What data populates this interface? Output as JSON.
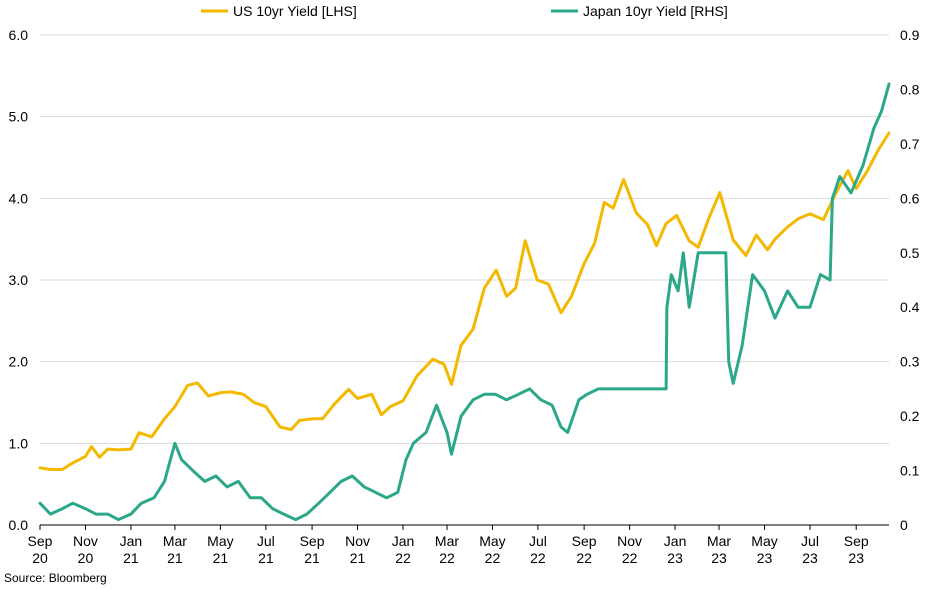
{
  "chart_data": {
    "type": "line",
    "legend": {
      "placement": "top-center"
    },
    "grid": {
      "horizontal": true,
      "vertical": false
    },
    "x_range": [
      "2020-09-01",
      "2023-10-15"
    ],
    "x_ticks": [
      {
        "date": "2020-09-01",
        "label": [
          "Sep",
          "20"
        ]
      },
      {
        "date": "2020-11-01",
        "label": [
          "Nov",
          "20"
        ]
      },
      {
        "date": "2021-01-01",
        "label": [
          "Jan",
          "21"
        ]
      },
      {
        "date": "2021-03-01",
        "label": [
          "Mar",
          "21"
        ]
      },
      {
        "date": "2021-05-01",
        "label": [
          "May",
          "21"
        ]
      },
      {
        "date": "2021-07-01",
        "label": [
          "Jul",
          "21"
        ]
      },
      {
        "date": "2021-09-01",
        "label": [
          "Sep",
          "21"
        ]
      },
      {
        "date": "2021-11-01",
        "label": [
          "Nov",
          "21"
        ]
      },
      {
        "date": "2022-01-01",
        "label": [
          "Jan",
          "22"
        ]
      },
      {
        "date": "2022-03-01",
        "label": [
          "Mar",
          "22"
        ]
      },
      {
        "date": "2022-05-01",
        "label": [
          "May",
          "22"
        ]
      },
      {
        "date": "2022-07-01",
        "label": [
          "Jul",
          "22"
        ]
      },
      {
        "date": "2022-09-01",
        "label": [
          "Sep",
          "22"
        ]
      },
      {
        "date": "2022-11-01",
        "label": [
          "Nov",
          "22"
        ]
      },
      {
        "date": "2023-01-01",
        "label": [
          "Jan",
          "23"
        ]
      },
      {
        "date": "2023-03-01",
        "label": [
          "Mar",
          "23"
        ]
      },
      {
        "date": "2023-05-01",
        "label": [
          "May",
          "23"
        ]
      },
      {
        "date": "2023-07-01",
        "label": [
          "Jul",
          "23"
        ]
      },
      {
        "date": "2023-09-01",
        "label": [
          "Sep",
          "23"
        ]
      }
    ],
    "y_left": {
      "range": [
        0,
        6
      ],
      "ticks": [
        "0.0",
        "1.0",
        "2.0",
        "3.0",
        "4.0",
        "5.0",
        "6.0"
      ]
    },
    "y_right": {
      "range": [
        0,
        0.9
      ],
      "ticks": [
        "0",
        "0.1",
        "0.2",
        "0.3",
        "0.4",
        "0.5",
        "0.6",
        "0.7",
        "0.8",
        "0.9"
      ]
    },
    "series": [
      {
        "name": "US 10yr Yield [LHS]",
        "axis": "left",
        "color": "#F5B800",
        "points": [
          [
            "2020-09-01",
            0.7
          ],
          [
            "2020-09-15",
            0.68
          ],
          [
            "2020-10-01",
            0.68
          ],
          [
            "2020-10-15",
            0.76
          ],
          [
            "2020-11-01",
            0.84
          ],
          [
            "2020-11-09",
            0.96
          ],
          [
            "2020-11-20",
            0.83
          ],
          [
            "2020-12-01",
            0.93
          ],
          [
            "2020-12-15",
            0.92
          ],
          [
            "2021-01-01",
            0.93
          ],
          [
            "2021-01-12",
            1.13
          ],
          [
            "2021-01-29",
            1.08
          ],
          [
            "2021-02-15",
            1.3
          ],
          [
            "2021-03-01",
            1.45
          ],
          [
            "2021-03-18",
            1.71
          ],
          [
            "2021-03-31",
            1.74
          ],
          [
            "2021-04-15",
            1.58
          ],
          [
            "2021-05-01",
            1.62
          ],
          [
            "2021-05-15",
            1.63
          ],
          [
            "2021-06-01",
            1.6
          ],
          [
            "2021-06-15",
            1.5
          ],
          [
            "2021-07-01",
            1.45
          ],
          [
            "2021-07-20",
            1.2
          ],
          [
            "2021-08-04",
            1.17
          ],
          [
            "2021-08-15",
            1.28
          ],
          [
            "2021-09-01",
            1.3
          ],
          [
            "2021-09-15",
            1.3
          ],
          [
            "2021-10-01",
            1.48
          ],
          [
            "2021-10-20",
            1.66
          ],
          [
            "2021-11-01",
            1.55
          ],
          [
            "2021-11-20",
            1.6
          ],
          [
            "2021-12-03",
            1.35
          ],
          [
            "2021-12-15",
            1.45
          ],
          [
            "2022-01-01",
            1.52
          ],
          [
            "2022-01-20",
            1.83
          ],
          [
            "2022-02-10",
            2.03
          ],
          [
            "2022-02-25",
            1.97
          ],
          [
            "2022-03-07",
            1.72
          ],
          [
            "2022-03-20",
            2.2
          ],
          [
            "2022-04-05",
            2.4
          ],
          [
            "2022-04-20",
            2.9
          ],
          [
            "2022-05-06",
            3.12
          ],
          [
            "2022-05-20",
            2.8
          ],
          [
            "2022-06-01",
            2.9
          ],
          [
            "2022-06-14",
            3.48
          ],
          [
            "2022-06-30",
            3.0
          ],
          [
            "2022-07-15",
            2.95
          ],
          [
            "2022-08-01",
            2.6
          ],
          [
            "2022-08-15",
            2.8
          ],
          [
            "2022-09-01",
            3.2
          ],
          [
            "2022-09-15",
            3.45
          ],
          [
            "2022-09-28",
            3.95
          ],
          [
            "2022-10-10",
            3.88
          ],
          [
            "2022-10-24",
            4.23
          ],
          [
            "2022-11-10",
            3.82
          ],
          [
            "2022-11-25",
            3.68
          ],
          [
            "2022-12-07",
            3.42
          ],
          [
            "2022-12-20",
            3.69
          ],
          [
            "2023-01-03",
            3.79
          ],
          [
            "2023-01-20",
            3.48
          ],
          [
            "2023-02-01",
            3.4
          ],
          [
            "2023-02-15",
            3.75
          ],
          [
            "2023-03-02",
            4.07
          ],
          [
            "2023-03-20",
            3.49
          ],
          [
            "2023-04-06",
            3.3
          ],
          [
            "2023-04-20",
            3.55
          ],
          [
            "2023-05-05",
            3.37
          ],
          [
            "2023-05-15",
            3.5
          ],
          [
            "2023-06-01",
            3.65
          ],
          [
            "2023-06-15",
            3.75
          ],
          [
            "2023-07-01",
            3.81
          ],
          [
            "2023-07-19",
            3.74
          ],
          [
            "2023-08-04",
            4.05
          ],
          [
            "2023-08-21",
            4.34
          ],
          [
            "2023-09-01",
            4.12
          ],
          [
            "2023-09-15",
            4.32
          ],
          [
            "2023-10-01",
            4.6
          ],
          [
            "2023-10-15",
            4.8
          ]
        ]
      },
      {
        "name": "Japan 10yr Yield [RHS]",
        "axis": "right",
        "color": "#2BA88A",
        "points": [
          [
            "2020-09-01",
            0.04
          ],
          [
            "2020-09-15",
            0.02
          ],
          [
            "2020-10-01",
            0.03
          ],
          [
            "2020-10-15",
            0.04
          ],
          [
            "2020-11-01",
            0.03
          ],
          [
            "2020-11-15",
            0.02
          ],
          [
            "2020-12-01",
            0.02
          ],
          [
            "2020-12-15",
            0.01
          ],
          [
            "2021-01-01",
            0.02
          ],
          [
            "2021-01-15",
            0.04
          ],
          [
            "2021-02-01",
            0.05
          ],
          [
            "2021-02-15",
            0.08
          ],
          [
            "2021-03-01",
            0.15
          ],
          [
            "2021-03-10",
            0.12
          ],
          [
            "2021-03-25",
            0.1
          ],
          [
            "2021-04-10",
            0.08
          ],
          [
            "2021-04-25",
            0.09
          ],
          [
            "2021-05-10",
            0.07
          ],
          [
            "2021-05-25",
            0.08
          ],
          [
            "2021-06-10",
            0.05
          ],
          [
            "2021-06-25",
            0.05
          ],
          [
            "2021-07-10",
            0.03
          ],
          [
            "2021-07-25",
            0.02
          ],
          [
            "2021-08-10",
            0.01
          ],
          [
            "2021-08-25",
            0.02
          ],
          [
            "2021-09-10",
            0.04
          ],
          [
            "2021-09-25",
            0.06
          ],
          [
            "2021-10-10",
            0.08
          ],
          [
            "2021-10-25",
            0.09
          ],
          [
            "2021-11-10",
            0.07
          ],
          [
            "2021-11-25",
            0.06
          ],
          [
            "2021-12-10",
            0.05
          ],
          [
            "2021-12-25",
            0.06
          ],
          [
            "2022-01-05",
            0.12
          ],
          [
            "2022-01-15",
            0.15
          ],
          [
            "2022-02-01",
            0.17
          ],
          [
            "2022-02-15",
            0.22
          ],
          [
            "2022-03-01",
            0.17
          ],
          [
            "2022-03-07",
            0.13
          ],
          [
            "2022-03-20",
            0.2
          ],
          [
            "2022-04-05",
            0.23
          ],
          [
            "2022-04-20",
            0.24
          ],
          [
            "2022-05-05",
            0.24
          ],
          [
            "2022-05-20",
            0.23
          ],
          [
            "2022-06-05",
            0.24
          ],
          [
            "2022-06-20",
            0.25
          ],
          [
            "2022-07-05",
            0.23
          ],
          [
            "2022-07-20",
            0.22
          ],
          [
            "2022-08-01",
            0.18
          ],
          [
            "2022-08-10",
            0.17
          ],
          [
            "2022-08-25",
            0.23
          ],
          [
            "2022-09-05",
            0.24
          ],
          [
            "2022-09-20",
            0.25
          ],
          [
            "2022-10-05",
            0.25
          ],
          [
            "2022-10-20",
            0.25
          ],
          [
            "2022-11-05",
            0.25
          ],
          [
            "2022-11-20",
            0.25
          ],
          [
            "2022-12-10",
            0.25
          ],
          [
            "2022-12-20",
            0.25
          ],
          [
            "2022-12-21",
            0.4
          ],
          [
            "2022-12-27",
            0.46
          ],
          [
            "2023-01-05",
            0.43
          ],
          [
            "2023-01-12",
            0.5
          ],
          [
            "2023-01-20",
            0.4
          ],
          [
            "2023-02-01",
            0.5
          ],
          [
            "2023-02-15",
            0.5
          ],
          [
            "2023-03-01",
            0.5
          ],
          [
            "2023-03-10",
            0.5
          ],
          [
            "2023-03-14",
            0.3
          ],
          [
            "2023-03-20",
            0.26
          ],
          [
            "2023-04-01",
            0.33
          ],
          [
            "2023-04-15",
            0.46
          ],
          [
            "2023-05-01",
            0.43
          ],
          [
            "2023-05-15",
            0.38
          ],
          [
            "2023-06-01",
            0.43
          ],
          [
            "2023-06-15",
            0.4
          ],
          [
            "2023-07-01",
            0.4
          ],
          [
            "2023-07-15",
            0.46
          ],
          [
            "2023-07-28",
            0.45
          ],
          [
            "2023-07-31",
            0.6
          ],
          [
            "2023-08-10",
            0.64
          ],
          [
            "2023-08-25",
            0.61
          ],
          [
            "2023-09-10",
            0.66
          ],
          [
            "2023-09-25",
            0.73
          ],
          [
            "2023-10-05",
            0.76
          ],
          [
            "2023-10-15",
            0.81
          ]
        ]
      }
    ],
    "source": "Source: Bloomberg"
  }
}
